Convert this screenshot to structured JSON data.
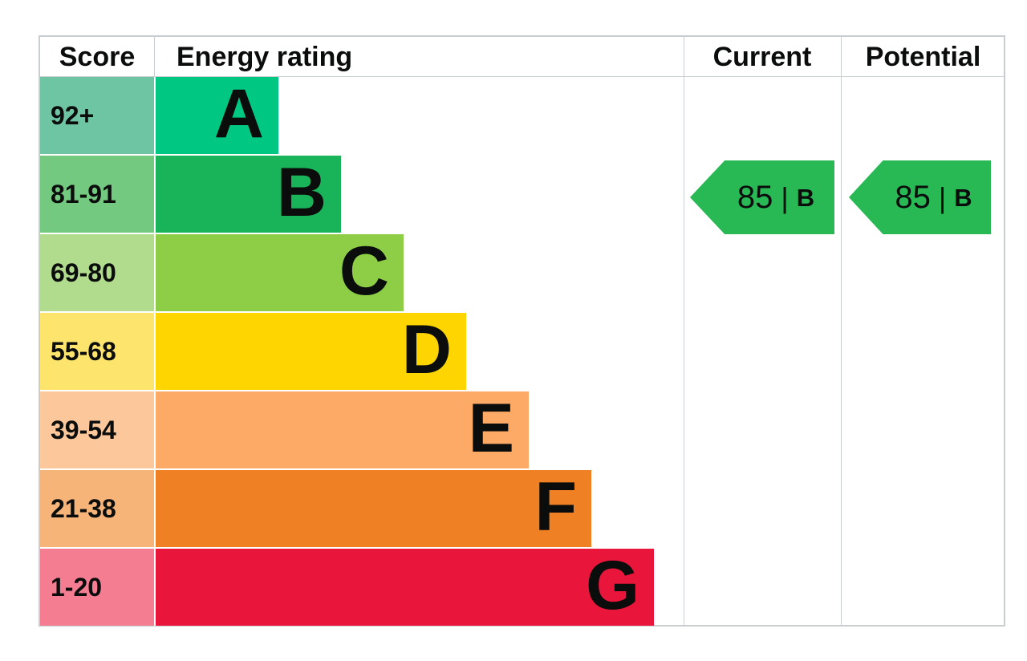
{
  "header": {
    "score": "Score",
    "energy_rating": "Energy rating",
    "current": "Current",
    "potential": "Potential"
  },
  "bands": [
    {
      "letter": "A",
      "score": "92+",
      "color": "#00c781",
      "score_color": "#6ec5a4"
    },
    {
      "letter": "B",
      "score": "81-91",
      "color": "#19b459",
      "score_color": "#74c981"
    },
    {
      "letter": "C",
      "score": "69-80",
      "color": "#8dce46",
      "score_color": "#b1dc8d"
    },
    {
      "letter": "D",
      "score": "55-68",
      "color": "#ffd500",
      "score_color": "#fde56d"
    },
    {
      "letter": "E",
      "score": "39-54",
      "color": "#fcaa65",
      "score_color": "#fcc79a"
    },
    {
      "letter": "F",
      "score": "21-38",
      "color": "#ef8023",
      "score_color": "#f6b478"
    },
    {
      "letter": "G",
      "score": "1-20",
      "color": "#e9153b",
      "score_color": "#f47d92"
    }
  ],
  "current": {
    "score": "85",
    "separator": "|",
    "band": "B",
    "color": "#28b955"
  },
  "potential": {
    "score": "85",
    "separator": "|",
    "band": "B",
    "color": "#28b955"
  },
  "colors": {
    "border": "#c9cdd0",
    "text": "#0b0c0c",
    "background": "#ffffff"
  },
  "chart_data": {
    "type": "bar",
    "title": "EPC energy efficiency rating chart",
    "columns": [
      "Score",
      "Energy rating",
      "Current",
      "Potential"
    ],
    "categories": [
      "A",
      "B",
      "C",
      "D",
      "E",
      "F",
      "G"
    ],
    "band_score_ranges": [
      "92+",
      "81-91",
      "69-80",
      "55-68",
      "39-54",
      "21-38",
      "1-20"
    ],
    "band_colors": [
      "#00c781",
      "#19b459",
      "#8dce46",
      "#ffd500",
      "#fcaa65",
      "#ef8023",
      "#e9153b"
    ],
    "bar_relative_lengths": [
      1,
      1.51,
      2.02,
      2.53,
      3.04,
      3.55,
      4.06
    ],
    "markers": [
      {
        "name": "Current",
        "value": 85,
        "band": "B",
        "row": "81-91"
      },
      {
        "name": "Potential",
        "value": 85,
        "band": "B",
        "row": "81-91"
      }
    ],
    "legend_position": "none",
    "grid": false
  }
}
